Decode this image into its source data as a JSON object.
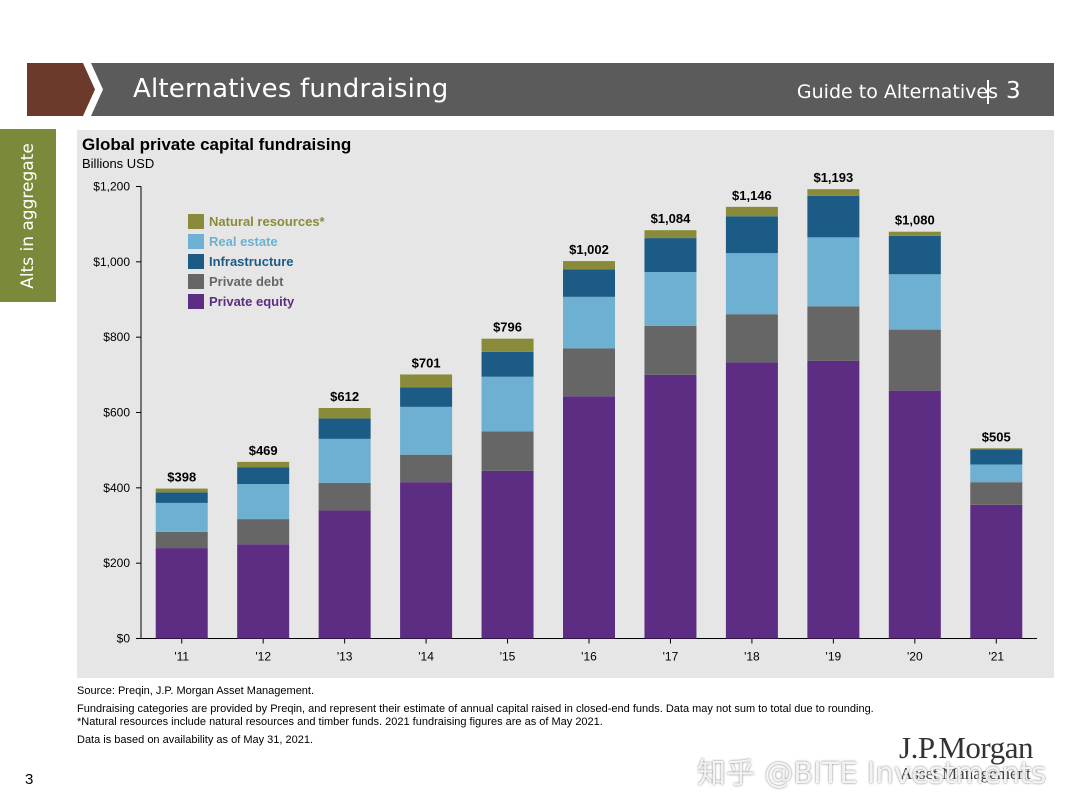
{
  "header": {
    "title": "Alternatives fundraising",
    "guide": "Guide to Alternatives",
    "page": "3",
    "chevron_color": "#6b3a2a"
  },
  "side_tab": {
    "label": "Alts in aggregate",
    "color": "#7b8a3a"
  },
  "chart_data": {
    "type": "bar",
    "stacked": true,
    "title": "Global private capital fundraising",
    "subtitle": "Billions USD",
    "categories": [
      "'11",
      "'12",
      "'13",
      "'14",
      "'15",
      "'16",
      "'17",
      "'18",
      "'19",
      "'20",
      "'21"
    ],
    "totals": [
      "$398",
      "$469",
      "$612",
      "$701",
      "$796",
      "$1,002",
      "$1,084",
      "$1,146",
      "$1,193",
      "$1,080",
      "$505"
    ],
    "series": [
      {
        "name": "Private equity",
        "color": "#5c2d82",
        "values": [
          240,
          250,
          340,
          415,
          445,
          643,
          700,
          733,
          737,
          658,
          355
        ]
      },
      {
        "name": "Private debt",
        "color": "#666666",
        "values": [
          43,
          67,
          73,
          73,
          105,
          127,
          130,
          128,
          145,
          162,
          60
        ]
      },
      {
        "name": "Real estate",
        "color": "#6eb0d1",
        "values": [
          77,
          93,
          117,
          127,
          145,
          137,
          143,
          162,
          183,
          147,
          47
        ]
      },
      {
        "name": "Infrastructure",
        "color": "#1b5b86",
        "values": [
          28,
          44,
          54,
          52,
          66,
          73,
          90,
          98,
          110,
          102,
          40
        ]
      },
      {
        "name": "Natural resources*",
        "color": "#8a8b3a",
        "values": [
          10,
          15,
          28,
          34,
          35,
          22,
          21,
          25,
          18,
          11,
          3
        ]
      }
    ],
    "yaxis": {
      "ylim": [
        0,
        1200
      ],
      "ticks": [
        0,
        200,
        400,
        600,
        800,
        1000,
        1200
      ],
      "tick_labels": [
        "$0",
        "$200",
        "$400",
        "$600",
        "$800",
        "$1,000",
        "$1,200"
      ]
    },
    "legend_order": [
      "Natural resources*",
      "Real estate",
      "Infrastructure",
      "Private debt",
      "Private equity"
    ],
    "legend_placement": "top-left",
    "grid": false
  },
  "footnotes": {
    "source": "Source: Preqin, J.P. Morgan Asset Management.",
    "notes": "Fundraising categories are provided by Preqin, and represent their estimate of annual capital raised in closed-end funds. Data may not sum to total due to rounding. *Natural resources include natural resources and timber funds. 2021 fundraising figures are as of May 2021.",
    "availability": "Data is based on availability as of May 31, 2021."
  },
  "page_number": "3",
  "logo": {
    "main": "J.P.Morgan",
    "sub": "Asset Management"
  },
  "watermark": "知乎 @BITE Investments"
}
